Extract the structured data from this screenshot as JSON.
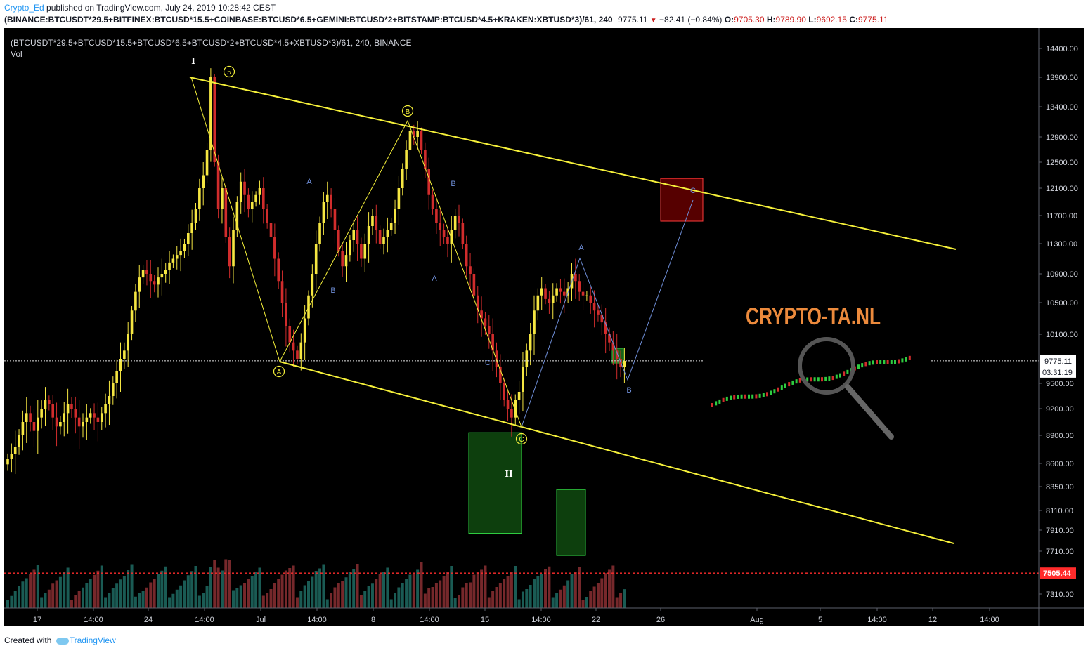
{
  "header": {
    "author": "Crypto_Ed",
    "published_text": "published on TradingView.com, July 24, 2019 10:28:42 CEST",
    "symbol_line": "(BINANCE:BTCUSDT*29.5+BITFINEX:BTCUSD*15.5+COINBASE:BTCUSD*6.5+GEMINI:BTCUSD*2+BITSTAMP:BTCUSD*4.5+KRAKEN:XBTUSD*3)/61, 240",
    "last_price": "9775.11",
    "change_arrow": "▼",
    "change": "−82.41 (−0.84%)",
    "open_label": "O:",
    "open": "9705.30",
    "high_label": "H:",
    "high": "9789.90",
    "low_label": "L:",
    "low": "9692.15",
    "close_label": "C:",
    "close": "9775.11"
  },
  "chart_title": "(BTCUSDT*29.5+BTCUSD*15.5+BTCUSD*6.5+BTCUSD*2+BTCUSD*4.5+XBTUSD*3)/61, 240, BINANCE",
  "vol_label": "Vol",
  "watermark": "CRYPTO-TA.NL",
  "footer": {
    "created_with": "Created with",
    "brand": "TradingView"
  },
  "colors": {
    "background": "#000000",
    "up": "#f5e642",
    "down": "#d12c2c",
    "vol_up": "#1f6b63",
    "vol_down": "#8b2f33",
    "trend": "#f5f03a",
    "wave_blue": "#6f8fd9",
    "watermark": "#ec8a3c"
  },
  "chart_data": {
    "type": "candlestick",
    "timeframe": "240",
    "y_ticks": [
      "14400.00",
      "13900.00",
      "13400.00",
      "12900.00",
      "12500.00",
      "12100.00",
      "11700.00",
      "11300.00",
      "10900.00",
      "10500.00",
      "10100.00",
      "9500.00",
      "9200.00",
      "8900.00",
      "8600.00",
      "8350.00",
      "8110.00",
      "7910.00",
      "7710.00",
      "7310.00"
    ],
    "x_ticks": [
      "17",
      "14:00",
      "24",
      "14:00",
      "Jul",
      "14:00",
      "8",
      "14:00",
      "15",
      "14:00",
      "22",
      "26",
      "Aug",
      "5",
      "14:00",
      "12",
      "14:00"
    ],
    "last_price_tag": "9775.11",
    "countdown_tag": "03:31:19",
    "level_tag": "7505.44",
    "level_price": 7505.44,
    "close_series": [
      8650,
      8700,
      8780,
      8900,
      9050,
      9150,
      9050,
      8950,
      9100,
      9200,
      9300,
      9250,
      9100,
      9000,
      9050,
      9150,
      9250,
      9200,
      9100,
      9000,
      9050,
      9100,
      9150,
      9100,
      9050,
      9150,
      9250,
      9350,
      9500,
      9650,
      9800,
      9900,
      10100,
      10400,
      10650,
      10850,
      10950,
      10900,
      10800,
      10750,
      10850,
      10900,
      10950,
      11050,
      11100,
      11150,
      11200,
      11300,
      11450,
      11600,
      11800,
      12100,
      12300,
      12700,
      13900,
      12500,
      11800,
      12100,
      11400,
      11000,
      11500,
      11900,
      12200,
      12000,
      11800,
      11900,
      12000,
      12100,
      11800,
      11600,
      11400,
      11100,
      10800,
      10500,
      10200,
      10000,
      9900,
      9800,
      10000,
      10300,
      10600,
      10900,
      11300,
      11600,
      11900,
      12000,
      11800,
      11500,
      11200,
      11000,
      11150,
      11350,
      11500,
      11300,
      11100,
      11300,
      11550,
      11700,
      11500,
      11300,
      11400,
      11500,
      11600,
      11800,
      12100,
      12400,
      12700,
      13000,
      12900,
      13000,
      12700,
      12400,
      12000,
      11800,
      11600,
      11500,
      11400,
      11300,
      11500,
      11700,
      11600,
      11300,
      11000,
      10900,
      10600,
      10400,
      10300,
      10200,
      10100,
      9900,
      9700,
      9500,
      9300,
      9200,
      9100,
      9300,
      9400,
      9700,
      9900,
      10100,
      10400,
      10600,
      10700,
      10550,
      10500,
      10600,
      10700,
      10650,
      10600,
      10700,
      10900,
      10800,
      10650,
      10600,
      10600,
      10500,
      10400,
      10350,
      10250,
      10100,
      10000,
      9900,
      9800,
      9700,
      9775
    ],
    "annotations": {
      "primary_waves": [
        "I",
        "5",
        "A",
        "B",
        "C",
        "II"
      ],
      "minor_waves": [
        "A",
        "B",
        "A",
        "B",
        "C",
        "A",
        "B",
        "C"
      ]
    },
    "trendlines": [
      {
        "name": "upper-channel",
        "from_price": 13900,
        "to_price": 11250
      },
      {
        "name": "lower-channel",
        "from_price": 9780,
        "to_price": 7660
      }
    ],
    "zones": [
      {
        "name": "target-zone-red",
        "price_top": 12250,
        "price_bottom": 11620
      },
      {
        "name": "support-zone-green",
        "price_top": 8930,
        "price_bottom": 7880
      },
      {
        "name": "support-zone-green-2",
        "price_top": 8320,
        "price_bottom": 7670
      }
    ]
  }
}
